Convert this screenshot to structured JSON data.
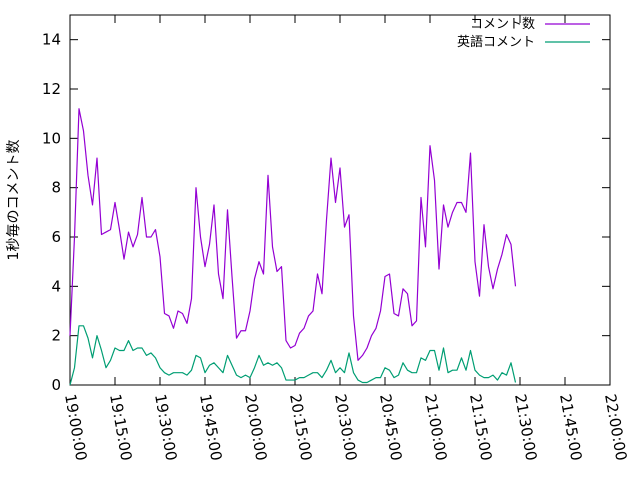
{
  "chart_data": {
    "type": "line",
    "title": "",
    "xlabel": "",
    "ylabel": "1秒毎のコメント数",
    "ylim": [
      0,
      15
    ],
    "xlim": [
      "19:00:00",
      "22:00:00"
    ],
    "y_ticks": [
      "0",
      "2",
      "4",
      "6",
      "8",
      "10",
      "12",
      "14"
    ],
    "x_ticks": [
      "19:00:00",
      "19:15:00",
      "19:30:00",
      "19:45:00",
      "20:00:00",
      "20:15:00",
      "20:30:00",
      "20:45:00",
      "21:00:00",
      "21:15:00",
      "21:30:00",
      "21:45:00",
      "22:00:00"
    ],
    "x_step_minutes": 1.5,
    "grid": false,
    "legend_position": "top-right",
    "series": [
      {
        "name": "コメント数",
        "color": "#9400d3",
        "values": [
          2.0,
          6.0,
          11.2,
          10.3,
          8.5,
          7.3,
          9.2,
          6.1,
          6.2,
          6.3,
          7.4,
          6.3,
          5.1,
          6.2,
          5.6,
          6.1,
          7.6,
          6.0,
          6.0,
          6.3,
          5.2,
          2.9,
          2.8,
          2.3,
          3.0,
          2.9,
          2.5,
          3.5,
          8.0,
          6.0,
          4.8,
          5.7,
          7.3,
          4.5,
          3.5,
          7.1,
          4.4,
          1.9,
          2.2,
          2.2,
          3.0,
          4.3,
          5.0,
          4.5,
          8.5,
          5.6,
          4.6,
          4.8,
          1.8,
          1.5,
          1.6,
          2.1,
          2.3,
          2.8,
          3.0,
          4.5,
          3.7,
          6.7,
          9.2,
          7.4,
          8.8,
          6.4,
          6.9,
          2.8,
          1.0,
          1.2,
          1.5,
          2.0,
          2.3,
          3.0,
          4.4,
          4.5,
          2.9,
          2.8,
          3.9,
          3.7,
          2.4,
          2.6,
          7.6,
          5.6,
          9.7,
          8.3,
          4.7,
          7.3,
          6.4,
          7.0,
          7.4,
          7.4,
          7.0,
          9.4,
          5.0,
          3.6,
          6.5,
          4.8,
          3.9,
          4.7,
          5.3,
          6.1,
          5.7,
          4.0
        ]
      },
      {
        "name": "英語コメント",
        "color": "#009e73",
        "values": [
          0.0,
          0.7,
          2.4,
          2.4,
          1.9,
          1.1,
          2.0,
          1.4,
          0.7,
          1.0,
          1.5,
          1.4,
          1.4,
          1.8,
          1.4,
          1.5,
          1.5,
          1.2,
          1.3,
          1.1,
          0.7,
          0.5,
          0.4,
          0.5,
          0.5,
          0.5,
          0.4,
          0.6,
          1.2,
          1.1,
          0.5,
          0.8,
          0.9,
          0.7,
          0.5,
          1.2,
          0.8,
          0.4,
          0.3,
          0.4,
          0.3,
          0.7,
          1.2,
          0.8,
          0.9,
          0.8,
          0.9,
          0.7,
          0.2,
          0.2,
          0.2,
          0.3,
          0.3,
          0.4,
          0.5,
          0.5,
          0.3,
          0.6,
          1.0,
          0.5,
          0.7,
          0.5,
          1.3,
          0.5,
          0.2,
          0.1,
          0.1,
          0.2,
          0.3,
          0.3,
          0.7,
          0.6,
          0.3,
          0.4,
          0.9,
          0.6,
          0.5,
          0.5,
          1.1,
          1.0,
          1.4,
          1.4,
          0.6,
          1.5,
          0.5,
          0.6,
          0.6,
          1.1,
          0.6,
          1.4,
          0.6,
          0.4,
          0.3,
          0.3,
          0.4,
          0.2,
          0.5,
          0.4,
          0.9,
          0.1
        ]
      }
    ]
  }
}
